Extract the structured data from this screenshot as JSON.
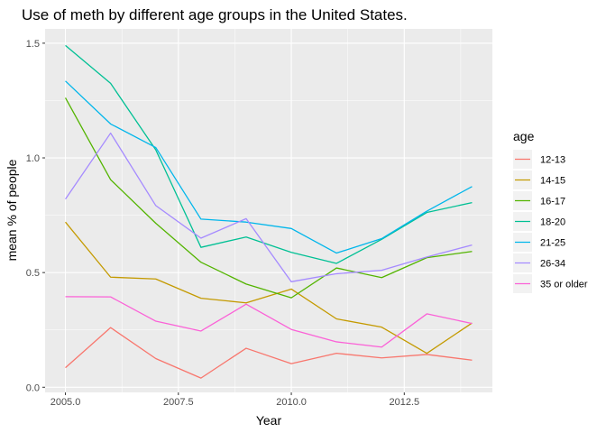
{
  "chart_data": {
    "type": "line",
    "title": "Use of meth by different age groups in the United States.",
    "xlabel": "Year",
    "ylabel": "mean % of people",
    "xlim": [
      2004.55,
      2014.45
    ],
    "ylim": [
      -0.0225,
      1.5625
    ],
    "x_ticks": [
      2005.0,
      2007.5,
      2010.0,
      2012.5
    ],
    "x_tick_labels": [
      "2005.0",
      "2007.5",
      "2010.0",
      "2012.5"
    ],
    "y_ticks": [
      0.0,
      0.5,
      1.0,
      1.5
    ],
    "y_tick_labels": [
      "0.0",
      "0.5",
      "1.0",
      "1.5"
    ],
    "grid": true,
    "legend": {
      "title": "age",
      "position": "right"
    },
    "x": [
      2005,
      2006,
      2007,
      2008,
      2009,
      2010,
      2011,
      2012,
      2013,
      2014
    ],
    "series": [
      {
        "name": "12-13",
        "color": "#F8766D",
        "values": [
          0.085,
          0.26,
          0.125,
          0.04,
          0.17,
          0.103,
          0.148,
          0.128,
          0.143,
          0.118
        ]
      },
      {
        "name": "14-15",
        "color": "#C49A00",
        "values": [
          0.72,
          0.48,
          0.472,
          0.388,
          0.368,
          0.428,
          0.298,
          0.262,
          0.148,
          0.28
        ]
      },
      {
        "name": "16-17",
        "color": "#53B400",
        "values": [
          1.262,
          0.905,
          0.715,
          0.545,
          0.45,
          0.39,
          0.52,
          0.478,
          0.565,
          0.592
        ]
      },
      {
        "name": "18-20",
        "color": "#00C094",
        "values": [
          1.49,
          1.325,
          1.035,
          0.61,
          0.655,
          0.588,
          0.54,
          0.645,
          0.762,
          0.805
        ]
      },
      {
        "name": "21-25",
        "color": "#00B6EB",
        "values": [
          1.335,
          1.148,
          1.045,
          0.733,
          0.72,
          0.692,
          0.585,
          0.648,
          0.768,
          0.875
        ]
      },
      {
        "name": "26-34",
        "color": "#A58AFF",
        "values": [
          0.82,
          1.108,
          0.792,
          0.65,
          0.735,
          0.46,
          0.495,
          0.51,
          0.568,
          0.62
        ]
      },
      {
        "name": "35 or older",
        "color": "#FB61D7",
        "values": [
          0.395,
          0.394,
          0.288,
          0.245,
          0.362,
          0.252,
          0.198,
          0.175,
          0.32,
          0.278
        ]
      }
    ]
  },
  "colors": {
    "panel": "#EBEBEB",
    "grid_major": "#FFFFFF",
    "tick_mark": "#333333"
  }
}
